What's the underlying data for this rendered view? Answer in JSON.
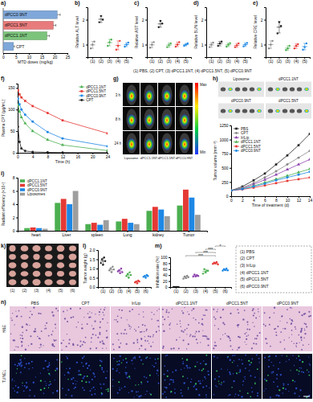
{
  "chart_data": [
    {
      "panel": "a)",
      "type": "bar",
      "orientation": "horizontal",
      "categories": [
        "dPCC0.9NT",
        "dPCC1.5NT",
        "dPCC1.1NT",
        "CPT"
      ],
      "values": [
        21,
        19.5,
        17,
        4
      ],
      "errors": [
        1.2,
        1,
        1,
        0.4
      ],
      "colors": [
        "#7fa7d9",
        "#e87b7b",
        "#7cc47c",
        "#7fa7d9"
      ],
      "x_label": "MTD doses (mg/kg)",
      "xlim": [
        0,
        25
      ],
      "xticks": [
        0,
        5,
        10,
        15,
        20,
        25
      ]
    },
    {
      "panel": "b)",
      "type": "dot",
      "y_label": "Relative ALT level",
      "categories": [
        "(1)",
        "(2)",
        "(3)",
        "(4)",
        "(5)"
      ],
      "points": [
        [
          0.85,
          1.0,
          1.12
        ],
        [
          1.9,
          2.15,
          2.0
        ],
        [
          0.95,
          1.1,
          1.2
        ],
        [
          0.8,
          0.95,
          1.15
        ],
        [
          0.92,
          1.0,
          1.08
        ]
      ],
      "values": [
        0.99,
        2.02,
        1.08,
        0.97,
        1.0
      ],
      "errors": [
        0.14,
        0.13,
        0.13,
        0.18,
        0.08
      ],
      "colors": [
        "#888888",
        "#222222",
        "#4caf50",
        "#e53935",
        "#1e88e5"
      ],
      "ylim": [
        0.5,
        2.5
      ],
      "yticks": [
        1,
        2
      ]
    },
    {
      "panel": "c)",
      "type": "dot",
      "y_label": "Relative AST level",
      "categories": [
        "(1)",
        "(2)",
        "(3)",
        "(4)",
        "(5)"
      ],
      "points": [
        [
          0.88,
          1.0,
          1.1
        ],
        [
          1.7,
          1.95,
          1.85
        ],
        [
          0.9,
          0.98,
          1.05
        ],
        [
          0.92,
          1.0,
          1.1
        ],
        [
          0.95,
          1.0,
          1.05
        ]
      ],
      "values": [
        0.99,
        1.83,
        0.98,
        1.01,
        1.0
      ],
      "errors": [
        0.11,
        0.13,
        0.08,
        0.09,
        0.05
      ],
      "colors": [
        "#888888",
        "#222222",
        "#4caf50",
        "#e53935",
        "#1e88e5"
      ],
      "ylim": [
        0.5,
        2.5
      ],
      "yticks": [
        1,
        2
      ]
    },
    {
      "panel": "d)",
      "type": "dot",
      "y_label": "Relative BUN level",
      "categories": [
        "(1)",
        "(2)",
        "(3)",
        "(4)",
        "(5)"
      ],
      "points": [
        [
          0.9,
          1.0,
          1.08
        ],
        [
          0.95,
          1.05,
          1.12
        ],
        [
          0.92,
          1.0,
          1.06
        ],
        [
          0.9,
          0.97,
          1.05
        ],
        [
          0.93,
          1.0,
          1.07
        ]
      ],
      "values": [
        0.99,
        1.04,
        0.99,
        0.97,
        1.0
      ],
      "errors": [
        0.09,
        0.09,
        0.07,
        0.08,
        0.07
      ],
      "colors": [
        "#888888",
        "#222222",
        "#4caf50",
        "#e53935",
        "#1e88e5"
      ],
      "ylim": [
        0.5,
        2.5
      ],
      "yticks": [
        1,
        2
      ]
    },
    {
      "panel": "e)",
      "type": "dot",
      "y_label": "Relative CRE level",
      "categories": [
        "(1)",
        "(2)",
        "(3)",
        "(4)",
        "(5)"
      ],
      "points": [
        [
          0.85,
          1.0,
          1.15
        ],
        [
          1.45,
          1.9,
          1.75
        ],
        [
          0.78,
          0.85,
          0.95
        ],
        [
          0.85,
          0.95,
          1.02
        ],
        [
          0.8,
          0.9,
          1.05
        ]
      ],
      "values": [
        1.0,
        1.7,
        0.86,
        0.94,
        0.92
      ],
      "errors": [
        0.15,
        0.23,
        0.09,
        0.09,
        0.13
      ],
      "colors": [
        "#888888",
        "#222222",
        "#4caf50",
        "#e53935",
        "#1e88e5"
      ],
      "ylim": [
        0.5,
        2.5
      ],
      "yticks": [
        1,
        2
      ]
    },
    {
      "panel": "f)",
      "type": "line",
      "x_label": "Time (h)",
      "y_label": "Plasma CPT (μg/mL)",
      "x": [
        0.083,
        0.5,
        1,
        2,
        4,
        8,
        12,
        24
      ],
      "series": [
        {
          "name": "dPCC1.1NT",
          "color": "#4caf50",
          "marker": "triangle",
          "values": [
            110,
            95,
            82,
            68,
            50,
            30,
            18,
            5
          ]
        },
        {
          "name": "dPCC1.5NT",
          "color": "#e53935",
          "marker": "square",
          "values": [
            145,
            135,
            128,
            120,
            108,
            92,
            75,
            45
          ]
        },
        {
          "name": "dPCC0.9NT",
          "color": "#1e88e5",
          "marker": "circle",
          "values": [
            125,
            112,
            100,
            88,
            72,
            48,
            33,
            15
          ]
        },
        {
          "name": "CPT",
          "color": "#222222",
          "marker": "circle",
          "values": [
            60,
            25,
            10,
            4,
            2,
            1,
            0.5,
            0.3
          ]
        }
      ],
      "xlim": [
        0,
        24
      ],
      "xticks": [
        0,
        4,
        8,
        12,
        16,
        20,
        24
      ],
      "ylim": [
        0,
        160
      ],
      "yticks": [
        0,
        50,
        100,
        150
      ],
      "legend": "top-right"
    },
    {
      "type": "line",
      "x_label": "Time of treatment (d)",
      "y_label": "Tumor volume (mm⁻³)",
      "x": [
        0,
        2,
        4,
        6,
        8,
        10,
        12,
        14
      ],
      "series": [
        {
          "name": "PBS",
          "color": "#222222",
          "marker": "square",
          "values": [
            100,
            170,
            280,
            400,
            560,
            720,
            900,
            1100
          ]
        },
        {
          "name": "CPT",
          "color": "#888888",
          "marker": "circle",
          "values": [
            100,
            150,
            230,
            330,
            440,
            560,
            680,
            800
          ]
        },
        {
          "name": "Ir/Lip",
          "color": "#8e44ad",
          "marker": "triangle",
          "values": [
            100,
            140,
            210,
            290,
            380,
            470,
            560,
            650
          ]
        },
        {
          "name": "dPCC1.1NT",
          "color": "#4caf50",
          "marker": "triangle",
          "values": [
            100,
            130,
            180,
            240,
            300,
            360,
            420,
            480
          ]
        },
        {
          "name": "dPCC1.5NT",
          "color": "#e53935",
          "marker": "square",
          "values": [
            100,
            120,
            150,
            190,
            230,
            270,
            300,
            330
          ]
        },
        {
          "name": "dPCC0.9NT",
          "color": "#1e88e5",
          "marker": "circle",
          "values": [
            100,
            125,
            170,
            220,
            280,
            330,
            380,
            430
          ]
        }
      ],
      "xlim": [
        0,
        14
      ],
      "xticks": [
        0,
        2,
        4,
        6,
        8,
        10,
        12,
        14
      ],
      "ylim": [
        0,
        1250
      ],
      "yticks": [
        0,
        250,
        500,
        750,
        1000,
        1250
      ],
      "legend": "top-left"
    },
    {
      "panel": "i)",
      "type": "bar",
      "y_label": "Radiant efficiency (×10⁹)",
      "categories": [
        "heart",
        "Liver",
        "spleen",
        "Lung",
        "kidney",
        "Tumor"
      ],
      "series": [
        {
          "name": "dPCC1.1NT",
          "color": "#4caf50",
          "values": [
            0.4,
            4.2,
            1.0,
            1.4,
            3.0,
            3.8
          ]
        },
        {
          "name": "dPCC1.5NT",
          "color": "#e53935",
          "values": [
            0.5,
            4.8,
            1.2,
            1.8,
            3.6,
            6.2
          ]
        },
        {
          "name": "dPCC0.9NT",
          "color": "#1e88e5",
          "values": [
            0.4,
            4.0,
            0.9,
            1.2,
            3.2,
            5.0
          ]
        },
        {
          "name": "Liposomes",
          "color": "#9e9e9e",
          "values": [
            0.3,
            6.0,
            1.6,
            1.0,
            2.2,
            2.4
          ]
        }
      ],
      "ylim": [
        0,
        8
      ],
      "yticks": [
        0,
        2,
        4,
        6,
        8
      ],
      "legend": "top-left"
    },
    {
      "panel": "l)",
      "type": "dot",
      "y_label": "Tumor weight (g)",
      "categories": [
        "(1)",
        "(2)",
        "(3)",
        "(4)",
        "(5)",
        "(6)"
      ],
      "points": [
        [
          1.3,
          1.5,
          1.2,
          1.6,
          1.4
        ],
        [
          0.9,
          1.0,
          0.8,
          1.1,
          0.95
        ],
        [
          0.85,
          0.9,
          0.75,
          1.0,
          0.8
        ],
        [
          0.6,
          0.7,
          0.5,
          0.8,
          0.65
        ],
        [
          0.25,
          0.3,
          0.2,
          0.35,
          0.3
        ],
        [
          0.55,
          0.6,
          0.5,
          0.65,
          0.6
        ]
      ],
      "values": [
        1.4,
        0.95,
        0.86,
        0.65,
        0.28,
        0.58
      ],
      "errors": [
        0.16,
        0.11,
        0.1,
        0.11,
        0.06,
        0.06
      ],
      "colors": [
        "#222222",
        "#888888",
        "#8e44ad",
        "#4caf50",
        "#e53935",
        "#1e88e5"
      ],
      "ylim": [
        0,
        2
      ],
      "yticks": [
        {
          "value": 0,
          "label": "0.0"
        },
        {
          "value": 0.5,
          "label": "0.5"
        },
        {
          "value": 1,
          "label": "1.0"
        },
        {
          "value": 1.5,
          "label": "1.5"
        },
        {
          "value": 2,
          "label": "2.0"
        }
      ]
    },
    {
      "panel": "m)",
      "type": "dot",
      "y_label": "Inhibition rate (%)",
      "categories": [
        "(1)",
        "(2)",
        "(3)",
        "(4)",
        "(5)",
        "(6)"
      ],
      "points": [
        [
          0,
          0,
          0,
          0,
          0
        ],
        [
          28,
          35,
          30,
          38,
          33
        ],
        [
          35,
          42,
          36,
          40,
          37
        ],
        [
          45,
          60,
          50,
          55,
          55
        ],
        [
          78,
          82,
          80,
          84,
          76
        ],
        [
          55,
          60,
          57,
          62,
          56
        ]
      ],
      "values": [
        0,
        32.8,
        38,
        53,
        80,
        58
      ],
      "errors": [
        0,
        4,
        3,
        6,
        3,
        3
      ],
      "colors": [
        "#222222",
        "#888888",
        "#8e44ad",
        "#4caf50",
        "#e53935",
        "#1e88e5"
      ],
      "ylim": [
        0,
        100
      ],
      "yticks": [
        0,
        20,
        40,
        60,
        80,
        100
      ],
      "annotations": [
        {
          "between": [
            "(2)",
            "(5)"
          ],
          "label": "***"
        },
        {
          "between": [
            "(3)",
            "(5)"
          ],
          "label": "***"
        },
        {
          "between": [
            "(4)",
            "(5)"
          ],
          "label": "***"
        },
        {
          "between": [
            "(5)",
            "(6)"
          ],
          "label": "*"
        }
      ],
      "group_legend": [
        "(1) PBS",
        "(2) CPT",
        "(3) Ir/Lip",
        "(4) dPCC1.1NT",
        "(5) dPCC1.5NT",
        "(6) dPCC0.9NT"
      ]
    }
  ],
  "shared_caption": "(1) PBS, (2) CPT, (3) dPCC1.1NT, (4) dPCC1.5NT, (5) dPCC0.9NT",
  "images": [
    {
      "panel": "g)",
      "kind": "fluorescence_imaging",
      "row_labels": [
        "3 h",
        "8 h",
        "24 h"
      ],
      "column_labels": [
        "Liposome",
        "dPCC1.1NT",
        "dPCC1.5NT",
        "dPCC0.9NT"
      ],
      "colorbar_labels": [
        "Max",
        "Min"
      ]
    },
    {
      "panel": "h)",
      "kind": "ex_vivo_imaging",
      "labels": [
        "Liposome",
        "dPCC1.1NT",
        "dPCC0.9NT",
        "dPCC1.5NT"
      ]
    },
    {
      "panel": "k)",
      "kind": "tumor_photo",
      "column_labels": [
        "(1)",
        "(2)",
        "(3)",
        "(4)",
        "(5)",
        "(6)"
      ]
    },
    {
      "panel": "n)",
      "kind": "histology",
      "column_labels": [
        "PBS",
        "CPT",
        "Ir/Lip",
        "dPCC1.1NT",
        "dPCC1.5NT",
        "dPCC0.9NT"
      ],
      "row_labels": [
        "H&E",
        "TUNEL"
      ]
    }
  ]
}
